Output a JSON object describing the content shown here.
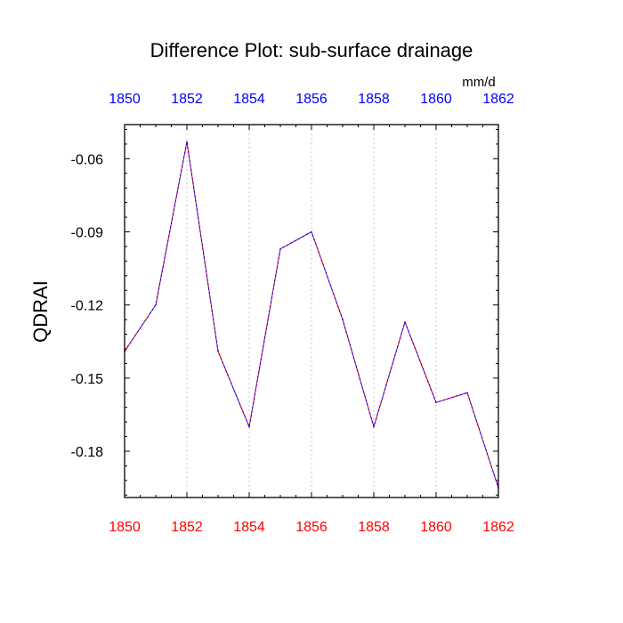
{
  "chart_data": {
    "type": "line",
    "title": "Difference Plot: sub-surface drainage",
    "units": "mm/d",
    "ylabel": "QDRAI",
    "xlabel": "",
    "x": [
      1850,
      1851,
      1852,
      1853,
      1854,
      1855,
      1856,
      1857,
      1858,
      1859,
      1860,
      1861,
      1862
    ],
    "series": [
      {
        "values": [
          -0.139,
          -0.12,
          -0.053,
          -0.139,
          -0.17,
          -0.097,
          -0.09,
          -0.126,
          -0.17,
          -0.127,
          -0.16,
          -0.156,
          -0.195
        ],
        "colors": [
          "#ff0000",
          "#0000ff"
        ]
      }
    ],
    "xlim": [
      1850,
      1862
    ],
    "ylim": [
      -0.199,
      -0.046
    ],
    "x_ticks": [
      1850,
      1852,
      1854,
      1856,
      1858,
      1860,
      1862
    ],
    "y_ticks": [
      -0.06,
      -0.09,
      -0.12,
      -0.15,
      -0.18
    ],
    "y_tick_labels": [
      "-0.06",
      "-0.09",
      "-0.12",
      "-0.15",
      "-0.18"
    ],
    "bottom_axis_color": "#ff0000",
    "top_axis_color": "#0000ff",
    "grid": "vertical dotted"
  }
}
